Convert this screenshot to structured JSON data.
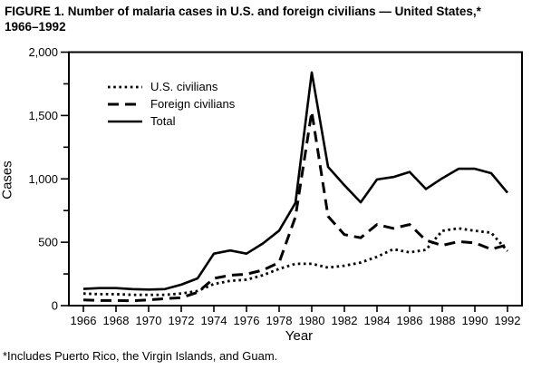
{
  "figure": {
    "title_line1": "FIGURE 1. Number of malaria cases in U.S. and foreign civilians — United States,*",
    "title_line2": "1966–1992",
    "footnote": "*Includes Puerto Rico, the Virgin Islands, and Guam."
  },
  "chart_data": {
    "type": "line",
    "title": "FIGURE 1. Number of malaria cases in U.S. and foreign civilians — United States,* 1966–1992",
    "xlabel": "Year",
    "ylabel": "Cases",
    "x": [
      1966,
      1967,
      1968,
      1969,
      1970,
      1971,
      1972,
      1973,
      1974,
      1975,
      1976,
      1977,
      1978,
      1979,
      1980,
      1981,
      1982,
      1983,
      1984,
      1985,
      1986,
      1987,
      1988,
      1989,
      1990,
      1991,
      1992
    ],
    "x_tick_labels": [
      "1966",
      "1968",
      "1970",
      "1972",
      "1974",
      "1976",
      "1978",
      "1980",
      "1982",
      "1984",
      "1986",
      "1988",
      "1990",
      "1992"
    ],
    "y_ticks": [
      0,
      500,
      1000,
      1500,
      2000
    ],
    "y_tick_labels": [
      "0",
      "500",
      "1,000",
      "1,500",
      "2,000"
    ],
    "y_minor_ticks": [
      250,
      750,
      1250,
      1750
    ],
    "ylim": [
      0,
      2000
    ],
    "xlim": [
      1966,
      1992
    ],
    "grid": false,
    "legend_position": "upper-left-inside",
    "line_color": "#000000",
    "background_color": "#ffffff",
    "series": [
      {
        "name": "U.S. civilians",
        "style": "dotted",
        "values": [
          95,
          90,
          90,
          85,
          85,
          85,
          95,
          115,
          170,
          195,
          205,
          240,
          290,
          330,
          330,
          300,
          315,
          340,
          385,
          445,
          420,
          440,
          590,
          610,
          590,
          575,
          430
        ]
      },
      {
        "name": "Foreign civilians",
        "style": "dashed",
        "values": [
          45,
          40,
          40,
          38,
          45,
          55,
          62,
          105,
          215,
          240,
          248,
          280,
          340,
          700,
          1530,
          705,
          560,
          535,
          640,
          610,
          640,
          515,
          475,
          505,
          495,
          445,
          480
        ]
      },
      {
        "name": "Total",
        "style": "solid",
        "values": [
          132,
          138,
          138,
          130,
          127,
          130,
          165,
          215,
          410,
          435,
          410,
          490,
          592,
          810,
          1840,
          1095,
          950,
          815,
          995,
          1015,
          1055,
          920,
          1005,
          1080,
          1080,
          1045,
          890
        ]
      }
    ]
  }
}
